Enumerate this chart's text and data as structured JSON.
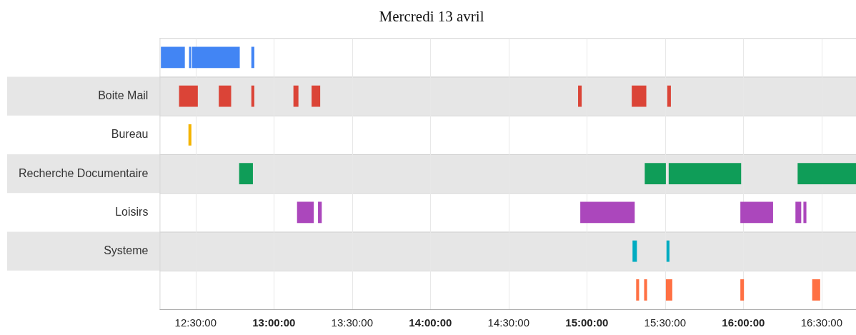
{
  "chart_data": {
    "type": "bar",
    "orientation": "horizontal",
    "title": "Mercredi 13 avril",
    "categories": [
      null,
      "Boite Mail",
      "Bureau",
      "Recherche Documentaire",
      "Loisirs",
      "Systeme",
      null
    ],
    "xlim": [
      12.27,
      16.72
    ],
    "xticks": [
      {
        "value": 12.5,
        "label": "12:30:00"
      },
      {
        "value": 13,
        "label": "13:00:00"
      },
      {
        "value": 13.5,
        "label": "13:30:00"
      },
      {
        "value": 14,
        "label": "14:00:00"
      },
      {
        "value": 14.5,
        "label": "14:30:00"
      },
      {
        "value": 15,
        "label": "15:00:00"
      },
      {
        "value": 15.5,
        "label": "15:30:00"
      },
      {
        "value": 16,
        "label": "16:00:00"
      },
      {
        "value": 16.5,
        "label": "16:30:00"
      }
    ],
    "grid": "x",
    "legend": false,
    "series": [
      {
        "color": "#4285f4",
        "base": [
          12.278,
          null,
          null,
          null,
          null,
          null,
          null
        ],
        "values": [
          0.153,
          null,
          null,
          null,
          null,
          null,
          null
        ]
      },
      {
        "color": "#4285f4",
        "base": [
          12.458,
          null,
          null,
          null,
          null,
          null,
          null
        ],
        "values": [
          0.014,
          null,
          null,
          null,
          null,
          null,
          null
        ]
      },
      {
        "color": "#4285f4",
        "base": [
          12.477,
          null,
          null,
          null,
          null,
          null,
          null
        ],
        "values": [
          0.305,
          null,
          null,
          null,
          null,
          null,
          null
        ]
      },
      {
        "color": "#4285f4",
        "base": [
          12.856,
          null,
          null,
          null,
          null,
          null,
          null
        ],
        "values": [
          0.019,
          null,
          null,
          null,
          null,
          null,
          null
        ]
      },
      {
        "color": "#db4437",
        "base": [
          null,
          12.394,
          null,
          null,
          null,
          null,
          null
        ],
        "values": [
          null,
          0.12,
          null,
          null,
          null,
          null,
          null
        ]
      },
      {
        "color": "#db4437",
        "base": [
          null,
          12.648,
          null,
          null,
          null,
          null,
          null
        ],
        "values": [
          null,
          0.079,
          null,
          null,
          null,
          null,
          null
        ]
      },
      {
        "color": "#db4437",
        "base": [
          null,
          12.856,
          null,
          null,
          null,
          null,
          null
        ],
        "values": [
          null,
          0.019,
          null,
          null,
          null,
          null,
          null
        ]
      },
      {
        "color": "#db4437",
        "base": [
          null,
          13.125,
          null,
          null,
          null,
          null,
          null
        ],
        "values": [
          null,
          0.032,
          null,
          null,
          null,
          null,
          null
        ]
      },
      {
        "color": "#db4437",
        "base": [
          null,
          13.241,
          null,
          null,
          null,
          null,
          null
        ],
        "values": [
          null,
          0.055,
          null,
          null,
          null,
          null,
          null
        ]
      },
      {
        "color": "#db4437",
        "base": [
          null,
          14.944,
          null,
          null,
          null,
          null,
          null
        ],
        "values": [
          null,
          0.023,
          null,
          null,
          null,
          null,
          null
        ]
      },
      {
        "color": "#db4437",
        "base": [
          null,
          15.287,
          null,
          null,
          null,
          null,
          null
        ],
        "values": [
          null,
          0.093,
          null,
          null,
          null,
          null,
          null
        ]
      },
      {
        "color": "#db4437",
        "base": [
          null,
          15.514,
          null,
          null,
          null,
          null,
          null
        ],
        "values": [
          null,
          0.023,
          null,
          null,
          null,
          null,
          null
        ]
      },
      {
        "color": "#f4b400",
        "base": [
          null,
          null,
          12.454,
          null,
          null,
          null,
          null
        ],
        "values": [
          null,
          null,
          0.019,
          null,
          null,
          null,
          null
        ]
      },
      {
        "color": "#0f9d58",
        "base": [
          null,
          null,
          null,
          12.778,
          null,
          null,
          null
        ],
        "values": [
          null,
          null,
          null,
          0.088,
          null,
          null,
          null
        ]
      },
      {
        "color": "#0f9d58",
        "base": [
          null,
          null,
          null,
          15.37,
          null,
          null,
          null
        ],
        "values": [
          null,
          null,
          null,
          0.135,
          null,
          null,
          null
        ]
      },
      {
        "color": "#0f9d58",
        "base": [
          null,
          null,
          null,
          15.523,
          null,
          null,
          null
        ],
        "values": [
          null,
          null,
          null,
          0.463,
          null,
          null,
          null
        ]
      },
      {
        "color": "#0f9d58",
        "base": [
          null,
          null,
          null,
          16.347,
          null,
          null,
          null
        ],
        "values": [
          null,
          null,
          null,
          0.373,
          null,
          null,
          null
        ]
      },
      {
        "color": "#ab47bc",
        "base": [
          null,
          null,
          null,
          null,
          13.148,
          null,
          null
        ],
        "values": [
          null,
          null,
          null,
          null,
          0.107,
          null,
          null
        ]
      },
      {
        "color": "#ab47bc",
        "base": [
          null,
          null,
          null,
          null,
          13.282,
          null,
          null
        ],
        "values": [
          null,
          null,
          null,
          null,
          0.024,
          null,
          null
        ]
      },
      {
        "color": "#ab47bc",
        "base": [
          null,
          null,
          null,
          null,
          14.958,
          null,
          null
        ],
        "values": [
          null,
          null,
          null,
          null,
          0.348,
          null,
          null
        ]
      },
      {
        "color": "#ab47bc",
        "base": [
          null,
          null,
          null,
          null,
          15.981,
          null,
          null
        ],
        "values": [
          null,
          null,
          null,
          null,
          0.209,
          null,
          null
        ]
      },
      {
        "color": "#ab47bc",
        "base": [
          null,
          null,
          null,
          null,
          16.333,
          null,
          null
        ],
        "values": [
          null,
          null,
          null,
          null,
          0.037,
          null,
          null
        ]
      },
      {
        "color": "#ab47bc",
        "base": [
          null,
          null,
          null,
          null,
          16.384,
          null,
          null
        ],
        "values": [
          null,
          null,
          null,
          null,
          0.019,
          null,
          null
        ]
      },
      {
        "color": "#00acc1",
        "base": [
          null,
          null,
          null,
          null,
          null,
          15.292,
          null
        ],
        "values": [
          null,
          null,
          null,
          null,
          null,
          0.028,
          null
        ]
      },
      {
        "color": "#00acc1",
        "base": [
          null,
          null,
          null,
          null,
          null,
          15.509,
          null
        ],
        "values": [
          null,
          null,
          null,
          null,
          null,
          0.019,
          null
        ]
      },
      {
        "color": "#ff7043",
        "base": [
          null,
          null,
          null,
          null,
          null,
          null,
          15.315
        ],
        "values": [
          null,
          null,
          null,
          null,
          null,
          null,
          0.019
        ]
      },
      {
        "color": "#ff7043",
        "base": [
          null,
          null,
          null,
          null,
          null,
          null,
          15.366
        ],
        "values": [
          null,
          null,
          null,
          null,
          null,
          null,
          0.019
        ]
      },
      {
        "color": "#ff7043",
        "base": [
          null,
          null,
          null,
          null,
          null,
          null,
          15.505
        ],
        "values": [
          null,
          null,
          null,
          null,
          null,
          null,
          0.041
        ]
      },
      {
        "color": "#ff7043",
        "base": [
          null,
          null,
          null,
          null,
          null,
          null,
          15.981
        ],
        "values": [
          null,
          null,
          null,
          null,
          null,
          null,
          0.023
        ]
      },
      {
        "color": "#ff7043",
        "base": [
          null,
          null,
          null,
          null,
          null,
          null,
          16.44
        ],
        "values": [
          null,
          null,
          null,
          null,
          null,
          null,
          0.051
        ]
      }
    ]
  }
}
